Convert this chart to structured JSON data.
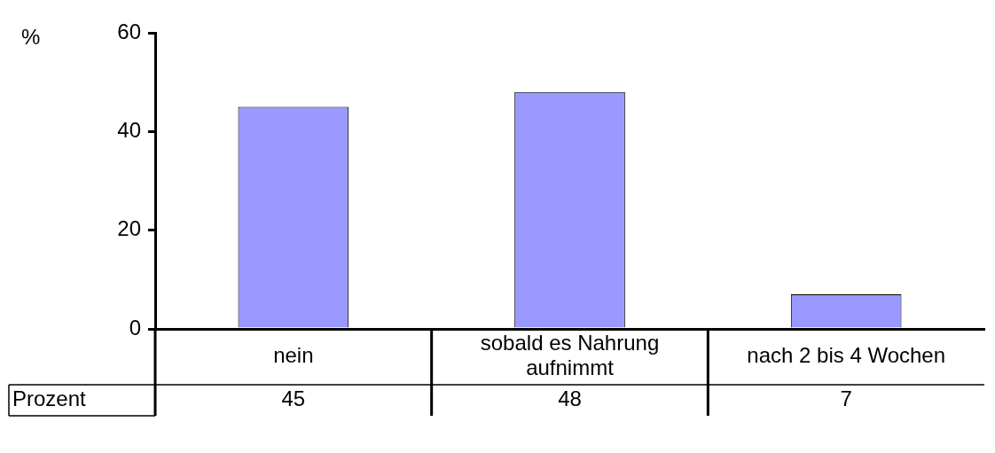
{
  "chart_data": {
    "type": "bar",
    "ylabel": "%",
    "categories": [
      "nein",
      "sobald es Nahrung aufnimmt",
      "nach 2 bis 4 Wochen"
    ],
    "series": [
      {
        "name": "Prozent",
        "color": "#9999ff",
        "values": [
          45,
          48,
          7
        ]
      }
    ],
    "ylim": [
      0,
      60
    ],
    "yticks": [
      0,
      20,
      40,
      60
    ],
    "data_labels": true
  }
}
